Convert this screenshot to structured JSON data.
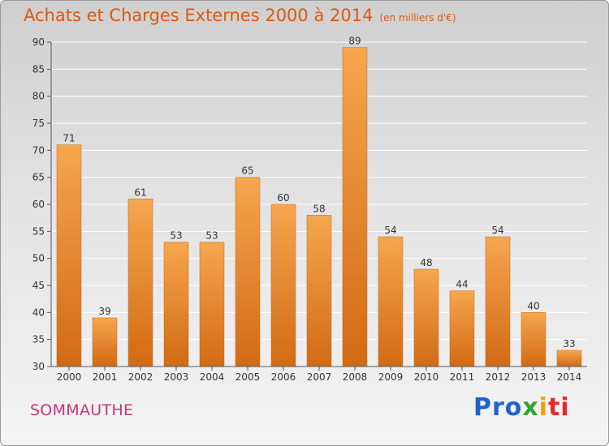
{
  "header": {
    "title": "Achats et Charges Externes 2000 à 2014",
    "subtitle": "(en milliers d'€)"
  },
  "footer": {
    "commune": "SOMMAUTHE",
    "logo": {
      "parts": [
        "Pro",
        "x",
        "i",
        "ti"
      ],
      "colors": [
        "#1e63c8",
        "#2ea52e",
        "#f0a000",
        "#e02a2a"
      ]
    }
  },
  "colors": {
    "bar_top": "#f6a64f",
    "bar_bottom": "#d26a14",
    "title": "#d85a10",
    "commune": "#c8347a"
  },
  "chart_data": {
    "type": "bar",
    "categories": [
      "2000",
      "2001",
      "2002",
      "2003",
      "2004",
      "2005",
      "2006",
      "2007",
      "2008",
      "2009",
      "2010",
      "2011",
      "2012",
      "2013",
      "2014"
    ],
    "values": [
      71,
      39,
      61,
      53,
      53,
      65,
      60,
      58,
      89,
      54,
      48,
      44,
      54,
      40,
      33
    ],
    "title": "Achats et Charges Externes 2000 à 2014",
    "subtitle": "(en milliers d'€)",
    "ylim": [
      30,
      90
    ],
    "yticks": [
      30,
      35,
      40,
      45,
      50,
      55,
      60,
      65,
      70,
      75,
      80,
      85,
      90
    ],
    "grid": true,
    "data_labels": true
  }
}
